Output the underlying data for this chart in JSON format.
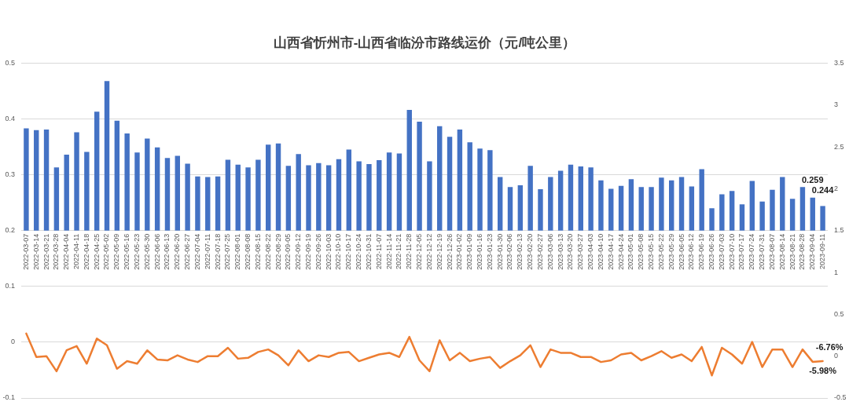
{
  "chart_data": {
    "type": "bar",
    "title": "山西省忻州市-山西省临汾市路线运价（元/吨公里）",
    "categories": [
      "2022-03-07",
      "2022-03-14",
      "2022-03-21",
      "2022-03-28",
      "2022-04-04",
      "2022-04-11",
      "2022-04-18",
      "2022-04-25",
      "2022-05-02",
      "2022-05-09",
      "2022-05-16",
      "2022-05-23",
      "2022-05-30",
      "2022-06-06",
      "2022-06-13",
      "2022-06-20",
      "2022-06-27",
      "2022-07-04",
      "2022-07-11",
      "2022-07-18",
      "2022-07-25",
      "2022-08-01",
      "2022-08-08",
      "2022-08-15",
      "2022-08-22",
      "2022-08-29",
      "2022-09-05",
      "2022-09-12",
      "2022-09-19",
      "2022-09-26",
      "2022-10-03",
      "2022-10-10",
      "2022-10-17",
      "2022-10-24",
      "2022-10-31",
      "2022-11-07",
      "2022-11-14",
      "2022-11-21",
      "2022-11-28",
      "2022-12-05",
      "2022-12-12",
      "2022-12-19",
      "2022-12-26",
      "2023-01-02",
      "2023-01-09",
      "2023-01-16",
      "2023-01-23",
      "2023-01-30",
      "2023-02-06",
      "2023-02-13",
      "2023-02-20",
      "2023-02-27",
      "2023-03-06",
      "2023-03-13",
      "2023-03-20",
      "2023-03-27",
      "2023-04-03",
      "2023-04-10",
      "2023-04-17",
      "2023-04-24",
      "2023-05-01",
      "2023-05-08",
      "2023-05-15",
      "2023-05-22",
      "2023-05-29",
      "2023-06-05",
      "2023-06-12",
      "2023-06-19",
      "2023-06-26",
      "2023-07-03",
      "2023-07-10",
      "2023-07-17",
      "2023-07-24",
      "2023-07-31",
      "2023-08-07",
      "2023-08-14",
      "2023-08-21",
      "2023-08-28",
      "2023-09-04",
      "2023-09-11"
    ],
    "series": [
      {
        "color": "#4472c4",
        "base": [
          0.2,
          0.2,
          0.2,
          0.2,
          0.2,
          0.2,
          0.2,
          0.2,
          0.2,
          0.2,
          0.2,
          0.2,
          0.2,
          0.2,
          0.2,
          0.2,
          0.2,
          0.2,
          0.2,
          0.2,
          0.2,
          0.2,
          0.2,
          0.2,
          0.2,
          0.2,
          0.2,
          0.2,
          0.2,
          0.2,
          0.2,
          0.2,
          0.2,
          0.2,
          0.2,
          0.2,
          0.2,
          0.2,
          0.2,
          0.2,
          0.2,
          0.2,
          0.2,
          0.2,
          0.2,
          0.2,
          0.2,
          0.2,
          0.2,
          0.2,
          0.2,
          0.2,
          0.2,
          0.2,
          0.2,
          0.2,
          0.2,
          0.2,
          0.2,
          0.2,
          0.2,
          0.2,
          0.2,
          0.2,
          0.2,
          0.2,
          0.2,
          0.2,
          0.2,
          0.2,
          0.2,
          0.2,
          0.2,
          0.2,
          0.2,
          0.2,
          0.2,
          0.2,
          0.2,
          0.2
        ],
        "values": [
          0.183,
          0.18,
          0.181,
          0.113,
          0.136,
          0.176,
          0.141,
          0.213,
          0.268,
          0.197,
          0.174,
          0.14,
          0.165,
          0.149,
          0.13,
          0.134,
          0.12,
          0.097,
          0.096,
          0.097,
          0.127,
          0.118,
          0.113,
          0.127,
          0.154,
          0.156,
          0.116,
          0.137,
          0.117,
          0.121,
          0.117,
          0.128,
          0.145,
          0.124,
          0.119,
          0.126,
          0.14,
          0.138,
          0.216,
          0.195,
          0.124,
          0.187,
          0.168,
          0.181,
          0.158,
          0.147,
          0.144,
          0.096,
          0.078,
          0.081,
          0.116,
          0.074,
          0.096,
          0.107,
          0.118,
          0.115,
          0.113,
          0.09,
          0.075,
          0.08,
          0.092,
          0.078,
          0.078,
          0.095,
          0.09,
          0.096,
          0.079,
          0.11,
          0.04,
          0.065,
          0.071,
          0.047,
          0.089,
          0.052,
          0.073,
          0.096,
          0.057,
          0.078,
          0.059,
          0.044
        ],
        "value_labels": [
          null,
          null,
          null,
          null,
          null,
          null,
          null,
          null,
          null,
          null,
          null,
          null,
          null,
          null,
          null,
          null,
          null,
          null,
          null,
          null,
          null,
          null,
          null,
          null,
          null,
          null,
          null,
          null,
          null,
          null,
          null,
          null,
          null,
          null,
          null,
          null,
          null,
          null,
          null,
          null,
          null,
          null,
          null,
          null,
          null,
          null,
          null,
          null,
          null,
          null,
          null,
          null,
          null,
          null,
          null,
          null,
          null,
          null,
          null,
          null,
          null,
          null,
          null,
          null,
          null,
          null,
          null,
          null,
          null,
          null,
          null,
          null,
          null,
          null,
          null,
          null,
          null,
          null,
          "0.259",
          "0.244"
        ]
      },
      {
        "type": "line",
        "axis": "y2",
        "color": "#ed7d31",
        "values": [
          0.27,
          -0.01,
          0,
          -0.18,
          0.07,
          0.12,
          -0.09,
          0.21,
          0.13,
          -0.15,
          -0.06,
          -0.09,
          0.07,
          -0.04,
          -0.05,
          0.01,
          -0.04,
          -0.07,
          0,
          0,
          0.1,
          -0.03,
          -0.02,
          0.05,
          0.08,
          0.01,
          -0.11,
          0.07,
          -0.06,
          0.01,
          -0.01,
          0.04,
          0.05,
          -0.06,
          -0.02,
          0.02,
          0.04,
          -0.01,
          0.23,
          -0.05,
          -0.18,
          0.19,
          -0.05,
          0.04,
          -0.06,
          -0.03,
          -0.01,
          -0.14,
          -0.06,
          0.01,
          0.13,
          -0.13,
          0.08,
          0.04,
          0.04,
          -0.01,
          -0.01,
          -0.07,
          -0.05,
          0.02,
          0.04,
          -0.05,
          0,
          0.06,
          -0.02,
          0.02,
          -0.06,
          0.11,
          -0.23,
          0.1,
          0.02,
          -0.09,
          0.17,
          -0.13,
          0.08,
          0.08,
          -0.13,
          0.08,
          -0.0676,
          -0.0598
        ],
        "value_labels": [
          null,
          null,
          null,
          null,
          null,
          null,
          null,
          null,
          null,
          null,
          null,
          null,
          null,
          null,
          null,
          null,
          null,
          null,
          null,
          null,
          null,
          null,
          null,
          null,
          null,
          null,
          null,
          null,
          null,
          null,
          null,
          null,
          null,
          null,
          null,
          null,
          null,
          null,
          null,
          null,
          null,
          null,
          null,
          null,
          null,
          null,
          null,
          null,
          null,
          null,
          null,
          null,
          null,
          null,
          null,
          null,
          null,
          null,
          null,
          null,
          null,
          null,
          null,
          null,
          null,
          null,
          null,
          null,
          null,
          null,
          null,
          null,
          null,
          null,
          null,
          null,
          null,
          null,
          "-6.76%",
          "-5.98%"
        ]
      }
    ],
    "ylim": [
      -0.1,
      0.5
    ],
    "yticks": [
      -0.1,
      0,
      0.1,
      0.2,
      0.3,
      0.4,
      0.5
    ],
    "y2lim": [
      -0.5,
      3.5
    ],
    "y2ticks": [
      -0.5,
      0,
      0.5,
      1,
      1.5,
      2,
      2.5,
      3,
      3.5
    ],
    "grid": "y"
  }
}
